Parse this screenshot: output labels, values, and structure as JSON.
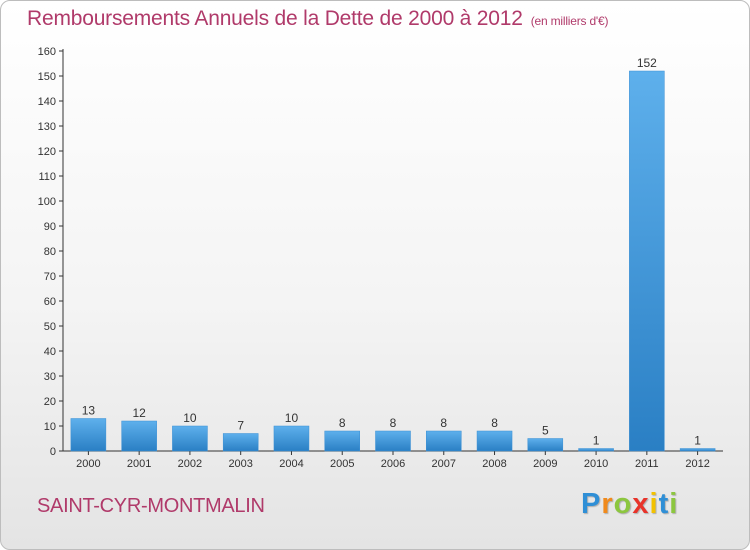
{
  "header": {
    "title": "Remboursements Annuels de la Dette de 2000 à 2012",
    "unit": "(en milliers d'€)"
  },
  "commune": "SAINT-CYR-MONTMALIN",
  "logo": {
    "text": "Proxiti",
    "letters": [
      "P",
      "r",
      "o",
      "x",
      "i",
      "t",
      "i"
    ],
    "colors": [
      "#2f8fd6",
      "#f08a1c",
      "#8cc63f",
      "#e8332a",
      "#f2c200",
      "#2f8fd6",
      "#8cc63f"
    ]
  },
  "colors": {
    "bar_light": "#5eb0ec",
    "bar_dark": "#2a7fc4",
    "axis": "#333333",
    "grid": "#d6d6d6",
    "accent": "#b03a6a"
  },
  "chart_data": {
    "type": "bar",
    "title": "Remboursements Annuels de la Dette de 2000 à 2012",
    "xlabel": "",
    "ylabel": "en milliers d'€",
    "categories": [
      "2000",
      "2001",
      "2002",
      "2003",
      "2004",
      "2005",
      "2006",
      "2007",
      "2008",
      "2009",
      "2010",
      "2011",
      "2012"
    ],
    "values": [
      13,
      12,
      10,
      7,
      10,
      8,
      8,
      8,
      8,
      5,
      1,
      152,
      1
    ],
    "ylim": [
      0,
      160
    ],
    "yticks": [
      0,
      10,
      20,
      30,
      40,
      50,
      60,
      70,
      80,
      90,
      100,
      110,
      120,
      130,
      140,
      150,
      160
    ],
    "grid": false,
    "legend": "none"
  }
}
